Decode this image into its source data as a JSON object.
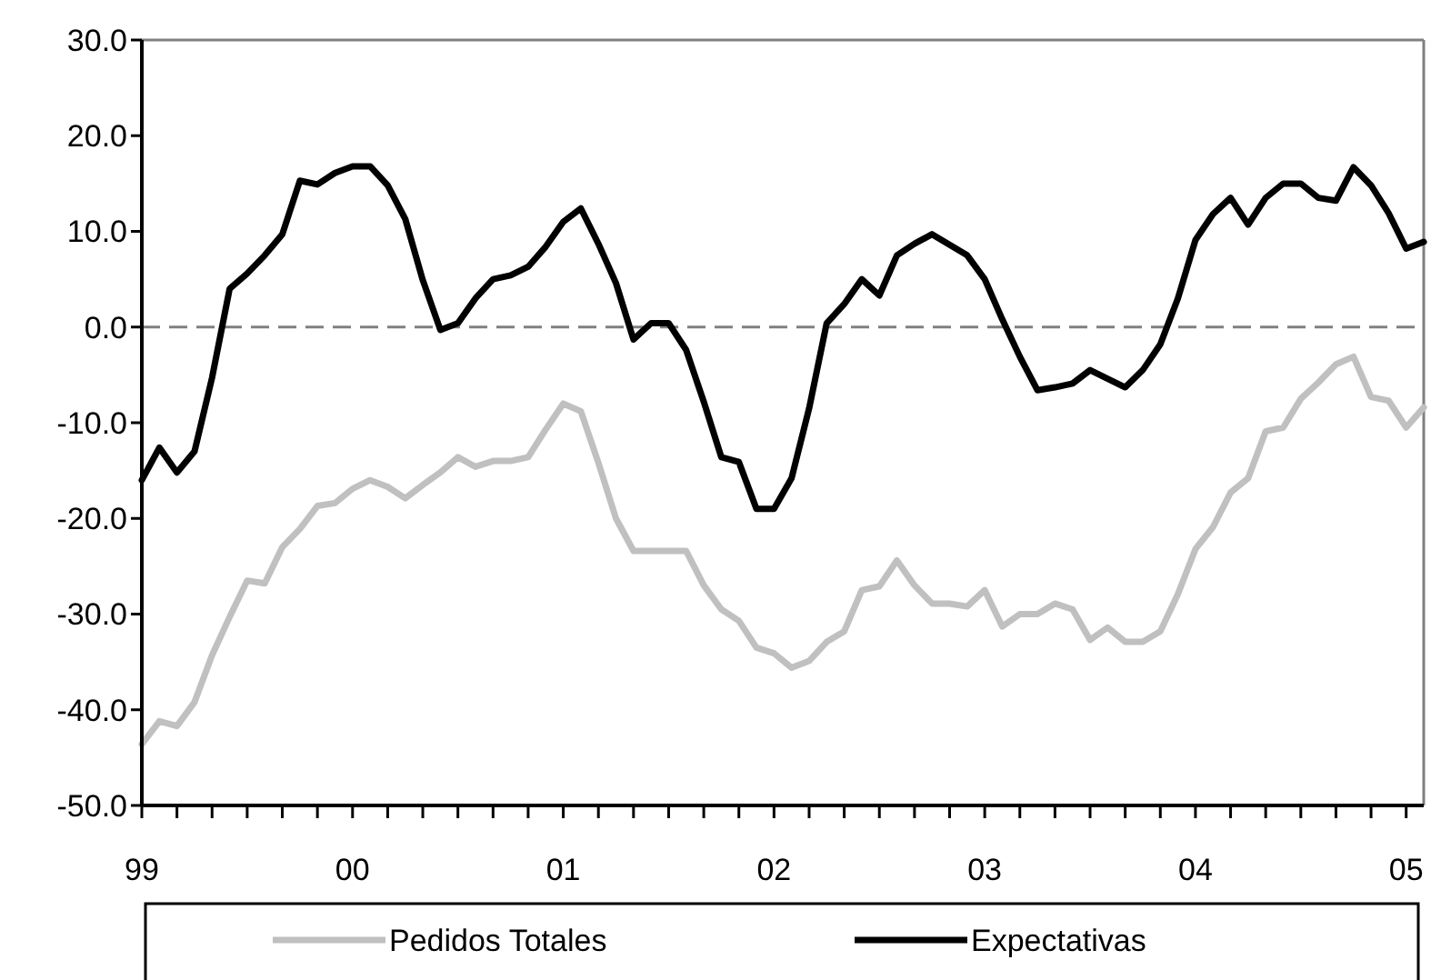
{
  "chart_data": {
    "type": "line",
    "xlim": [
      1999,
      2005.0833
    ],
    "xticks": [
      {
        "value": 1999,
        "label": "99"
      },
      {
        "value": 1999.1667,
        "label": null
      },
      {
        "value": 1999.3333,
        "label": null
      },
      {
        "value": 1999.5,
        "label": null
      },
      {
        "value": 1999.6667,
        "label": null
      },
      {
        "value": 1999.8333,
        "label": null
      },
      {
        "value": 2000,
        "label": "00"
      },
      {
        "value": 2000.1667,
        "label": null
      },
      {
        "value": 2000.3333,
        "label": null
      },
      {
        "value": 2000.5,
        "label": null
      },
      {
        "value": 2000.6667,
        "label": null
      },
      {
        "value": 2000.8333,
        "label": null
      },
      {
        "value": 2001,
        "label": "01"
      },
      {
        "value": 2001.1667,
        "label": null
      },
      {
        "value": 2001.3333,
        "label": null
      },
      {
        "value": 2001.5,
        "label": null
      },
      {
        "value": 2001.6667,
        "label": null
      },
      {
        "value": 2001.8333,
        "label": null
      },
      {
        "value": 2002,
        "label": "02"
      },
      {
        "value": 2002.1667,
        "label": null
      },
      {
        "value": 2002.3333,
        "label": null
      },
      {
        "value": 2002.5,
        "label": null
      },
      {
        "value": 2002.6667,
        "label": null
      },
      {
        "value": 2002.8333,
        "label": null
      },
      {
        "value": 2003,
        "label": "03"
      },
      {
        "value": 2003.1667,
        "label": null
      },
      {
        "value": 2003.3333,
        "label": null
      },
      {
        "value": 2003.5,
        "label": null
      },
      {
        "value": 2003.6667,
        "label": null
      },
      {
        "value": 2003.8333,
        "label": null
      },
      {
        "value": 2004,
        "label": "04"
      },
      {
        "value": 2004.1667,
        "label": null
      },
      {
        "value": 2004.3333,
        "label": null
      },
      {
        "value": 2004.5,
        "label": null
      },
      {
        "value": 2004.6667,
        "label": null
      },
      {
        "value": 2004.8333,
        "label": null
      },
      {
        "value": 2005,
        "label": "05"
      }
    ],
    "ylim": [
      -50,
      30
    ],
    "yticks": [
      {
        "value": -50,
        "label": "-50.0"
      },
      {
        "value": -40,
        "label": "-40.0"
      },
      {
        "value": -30,
        "label": "-30.0"
      },
      {
        "value": -20,
        "label": "-20.0"
      },
      {
        "value": -10,
        "label": "-10.0"
      },
      {
        "value": 0,
        "label": "0.0"
      },
      {
        "value": 10,
        "label": "10.0"
      },
      {
        "value": 20,
        "label": "20.0"
      },
      {
        "value": 30,
        "label": "30.0"
      }
    ],
    "grid": false,
    "legend": "bottom",
    "ref_lines": [
      {
        "axis": "y",
        "value": 0,
        "color": "#808080",
        "line_style": "dashed"
      }
    ],
    "series": [
      {
        "name": "Pedidos Totales",
        "color": "#c0c0c0",
        "values": [
          -43.6,
          -41.2,
          -41.7,
          -39.2,
          -34.3,
          -30.3,
          -26.5,
          -26.8,
          -23.0,
          -21.1,
          -18.7,
          -18.4,
          -16.9,
          -16.0,
          -16.7,
          -17.9,
          -16.5,
          -15.2,
          -13.6,
          -14.6,
          -14.0,
          -14.0,
          -13.6,
          -10.7,
          -8.0,
          -8.8,
          -14.2,
          -20.0,
          -23.4,
          -23.4,
          -23.4,
          -23.4,
          -27.0,
          -29.5,
          -30.7,
          -33.5,
          -34.1,
          -35.6,
          -34.9,
          -32.9,
          -31.8,
          -27.5,
          -27.1,
          -24.4,
          -27.0,
          -28.9,
          -28.9,
          -29.2,
          -27.5,
          -31.3,
          -30.0,
          -30.0,
          -28.9,
          -29.5,
          -32.7,
          -31.4,
          -32.9,
          -32.9,
          -31.8,
          -27.9,
          -23.2,
          -20.9,
          -17.3,
          -15.8,
          -10.9,
          -10.5,
          -7.5,
          -5.8,
          -3.9,
          -3.1,
          -7.3,
          -7.7,
          -10.5,
          -8.4
        ]
      },
      {
        "name": "Expectativas",
        "color": "#000000",
        "values": [
          -16.0,
          -12.6,
          -15.2,
          -13.0,
          -5.3,
          4.0,
          5.6,
          7.5,
          9.7,
          15.3,
          14.9,
          16.1,
          16.8,
          16.8,
          14.8,
          11.3,
          4.9,
          -0.3,
          0.4,
          3.0,
          5.0,
          5.4,
          6.3,
          8.4,
          11.0,
          12.4,
          8.7,
          4.6,
          -1.3,
          0.4,
          0.4,
          -2.4,
          -7.8,
          -13.6,
          -14.1,
          -19.0,
          -19.0,
          -15.8,
          -8.5,
          0.4,
          2.4,
          5.0,
          3.3,
          7.5,
          8.7,
          9.7,
          8.6,
          7.5,
          5.0,
          0.8,
          -3.1,
          -6.6,
          -6.3,
          -5.9,
          -4.5,
          -5.4,
          -6.3,
          -4.5,
          -1.8,
          3.0,
          9.1,
          11.8,
          13.5,
          10.7,
          13.5,
          15.0,
          15.0,
          13.5,
          13.2,
          16.7,
          14.8,
          11.9,
          8.2,
          8.9
        ]
      }
    ],
    "x": [
      1999,
      1999.0833,
      1999.1667,
      1999.25,
      1999.3333,
      1999.4167,
      1999.5,
      1999.5833,
      1999.6667,
      1999.75,
      1999.8333,
      1999.9167,
      2000,
      2000.0833,
      2000.1667,
      2000.25,
      2000.3333,
      2000.4167,
      2000.5,
      2000.5833,
      2000.6667,
      2000.75,
      2000.8333,
      2000.9167,
      2001,
      2001.0833,
      2001.1667,
      2001.25,
      2001.3333,
      2001.4167,
      2001.5,
      2001.5833,
      2001.6667,
      2001.75,
      2001.8333,
      2001.9167,
      2002,
      2002.0833,
      2002.1667,
      2002.25,
      2002.3333,
      2002.4167,
      2002.5,
      2002.5833,
      2002.6667,
      2002.75,
      2002.8333,
      2002.9167,
      2003,
      2003.0833,
      2003.1667,
      2003.25,
      2003.3333,
      2003.4167,
      2003.5,
      2003.5833,
      2003.6667,
      2003.75,
      2003.8333,
      2003.9167,
      2004,
      2004.0833,
      2004.1667,
      2004.25,
      2004.3333,
      2004.4167,
      2004.5,
      2004.5833,
      2004.6667,
      2004.75,
      2004.8333,
      2004.9167,
      2005,
      2005.0833
    ]
  }
}
